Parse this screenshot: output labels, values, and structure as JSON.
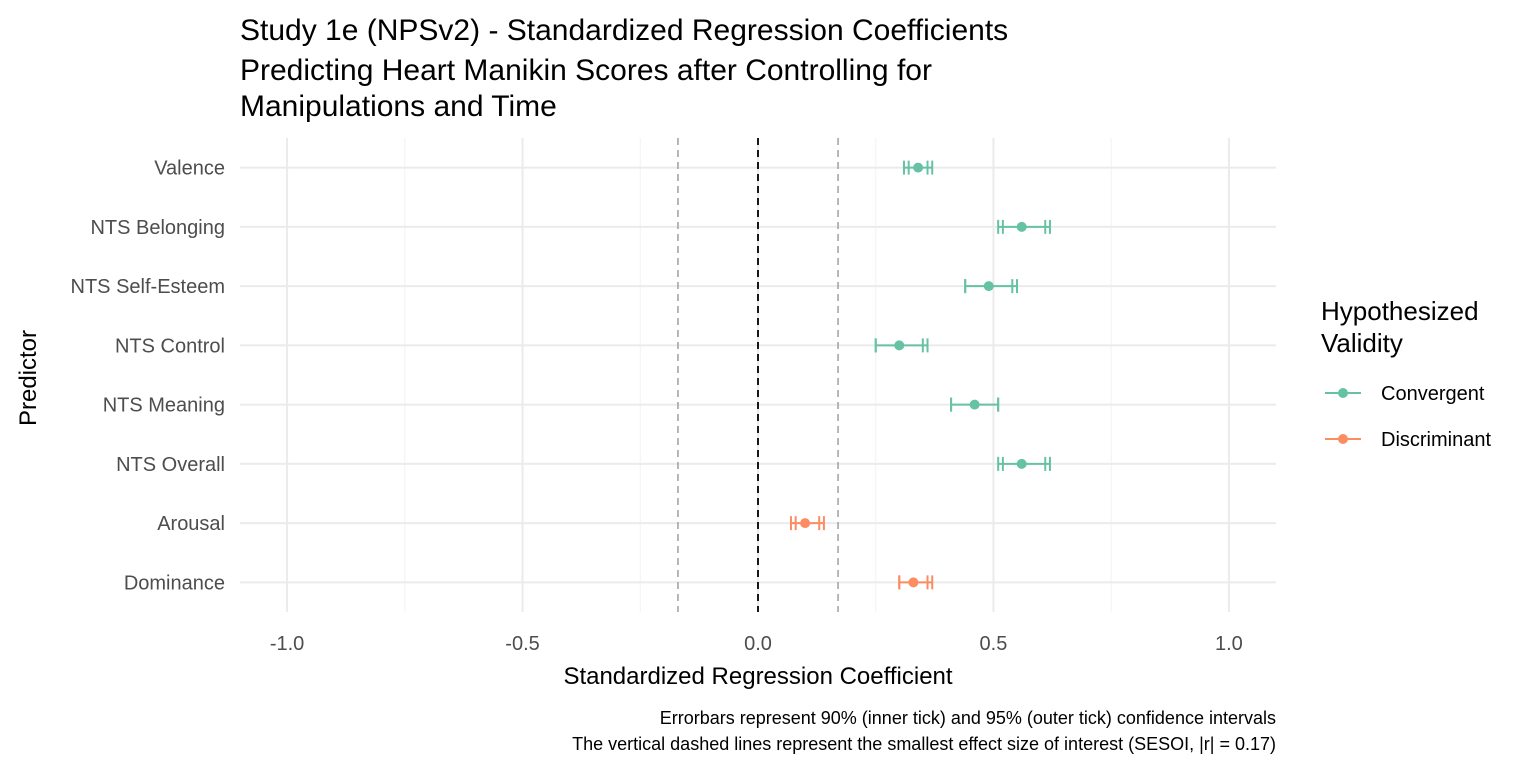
{
  "chart_data": {
    "type": "errorbar",
    "title_lines": [
      "Study 1e (NPSv2) - Standardized Regression Coefficients",
      "Predicting Heart Manikin Scores after Controlling for",
      "Manipulations and Time"
    ],
    "xlabel": "Standardized Regression Coefficient",
    "ylabel": "Predictor",
    "xlim": [
      -1.1,
      1.1
    ],
    "x_ticks": [
      -1.0,
      -0.5,
      0.0,
      0.5,
      1.0
    ],
    "x_tick_labels": [
      "-1.0",
      "-0.5",
      "0.0",
      "0.5",
      "1.0"
    ],
    "sesoi": 0.17,
    "grid": true,
    "legend": {
      "title_lines": [
        "Hypothesized",
        "Validity"
      ],
      "position": "right",
      "entries": [
        {
          "label": "Convergent",
          "color": "#66c2a5"
        },
        {
          "label": "Discriminant",
          "color": "#fc8d62"
        }
      ]
    },
    "points": [
      {
        "predictor": "Valence",
        "group": "Convergent",
        "estimate": 0.34,
        "ci90": [
          0.32,
          0.36
        ],
        "ci95": [
          0.31,
          0.37
        ]
      },
      {
        "predictor": "NTS Belonging",
        "group": "Convergent",
        "estimate": 0.56,
        "ci90": [
          0.52,
          0.61
        ],
        "ci95": [
          0.51,
          0.62
        ]
      },
      {
        "predictor": "NTS Self-Esteem",
        "group": "Convergent",
        "estimate": 0.49,
        "ci90": [
          0.44,
          0.54
        ],
        "ci95": [
          0.44,
          0.55
        ]
      },
      {
        "predictor": "NTS Control",
        "group": "Convergent",
        "estimate": 0.3,
        "ci90": [
          0.25,
          0.35
        ],
        "ci95": [
          0.25,
          0.36
        ]
      },
      {
        "predictor": "NTS Meaning",
        "group": "Convergent",
        "estimate": 0.46,
        "ci90": [
          0.41,
          0.51
        ],
        "ci95": [
          0.41,
          0.51
        ]
      },
      {
        "predictor": "NTS Overall",
        "group": "Convergent",
        "estimate": 0.56,
        "ci90": [
          0.52,
          0.61
        ],
        "ci95": [
          0.51,
          0.62
        ]
      },
      {
        "predictor": "Arousal",
        "group": "Discriminant",
        "estimate": 0.1,
        "ci90": [
          0.08,
          0.13
        ],
        "ci95": [
          0.07,
          0.14
        ]
      },
      {
        "predictor": "Dominance",
        "group": "Discriminant",
        "estimate": 0.33,
        "ci90": [
          0.3,
          0.36
        ],
        "ci95": [
          0.3,
          0.37
        ]
      }
    ],
    "caption_lines": [
      "Errorbars represent 90% (inner tick) and 95% (outer tick) confidence intervals",
      "The vertical dashed lines represent the smallest effect size of interest (SESOI, |r| = 0.17)"
    ]
  }
}
